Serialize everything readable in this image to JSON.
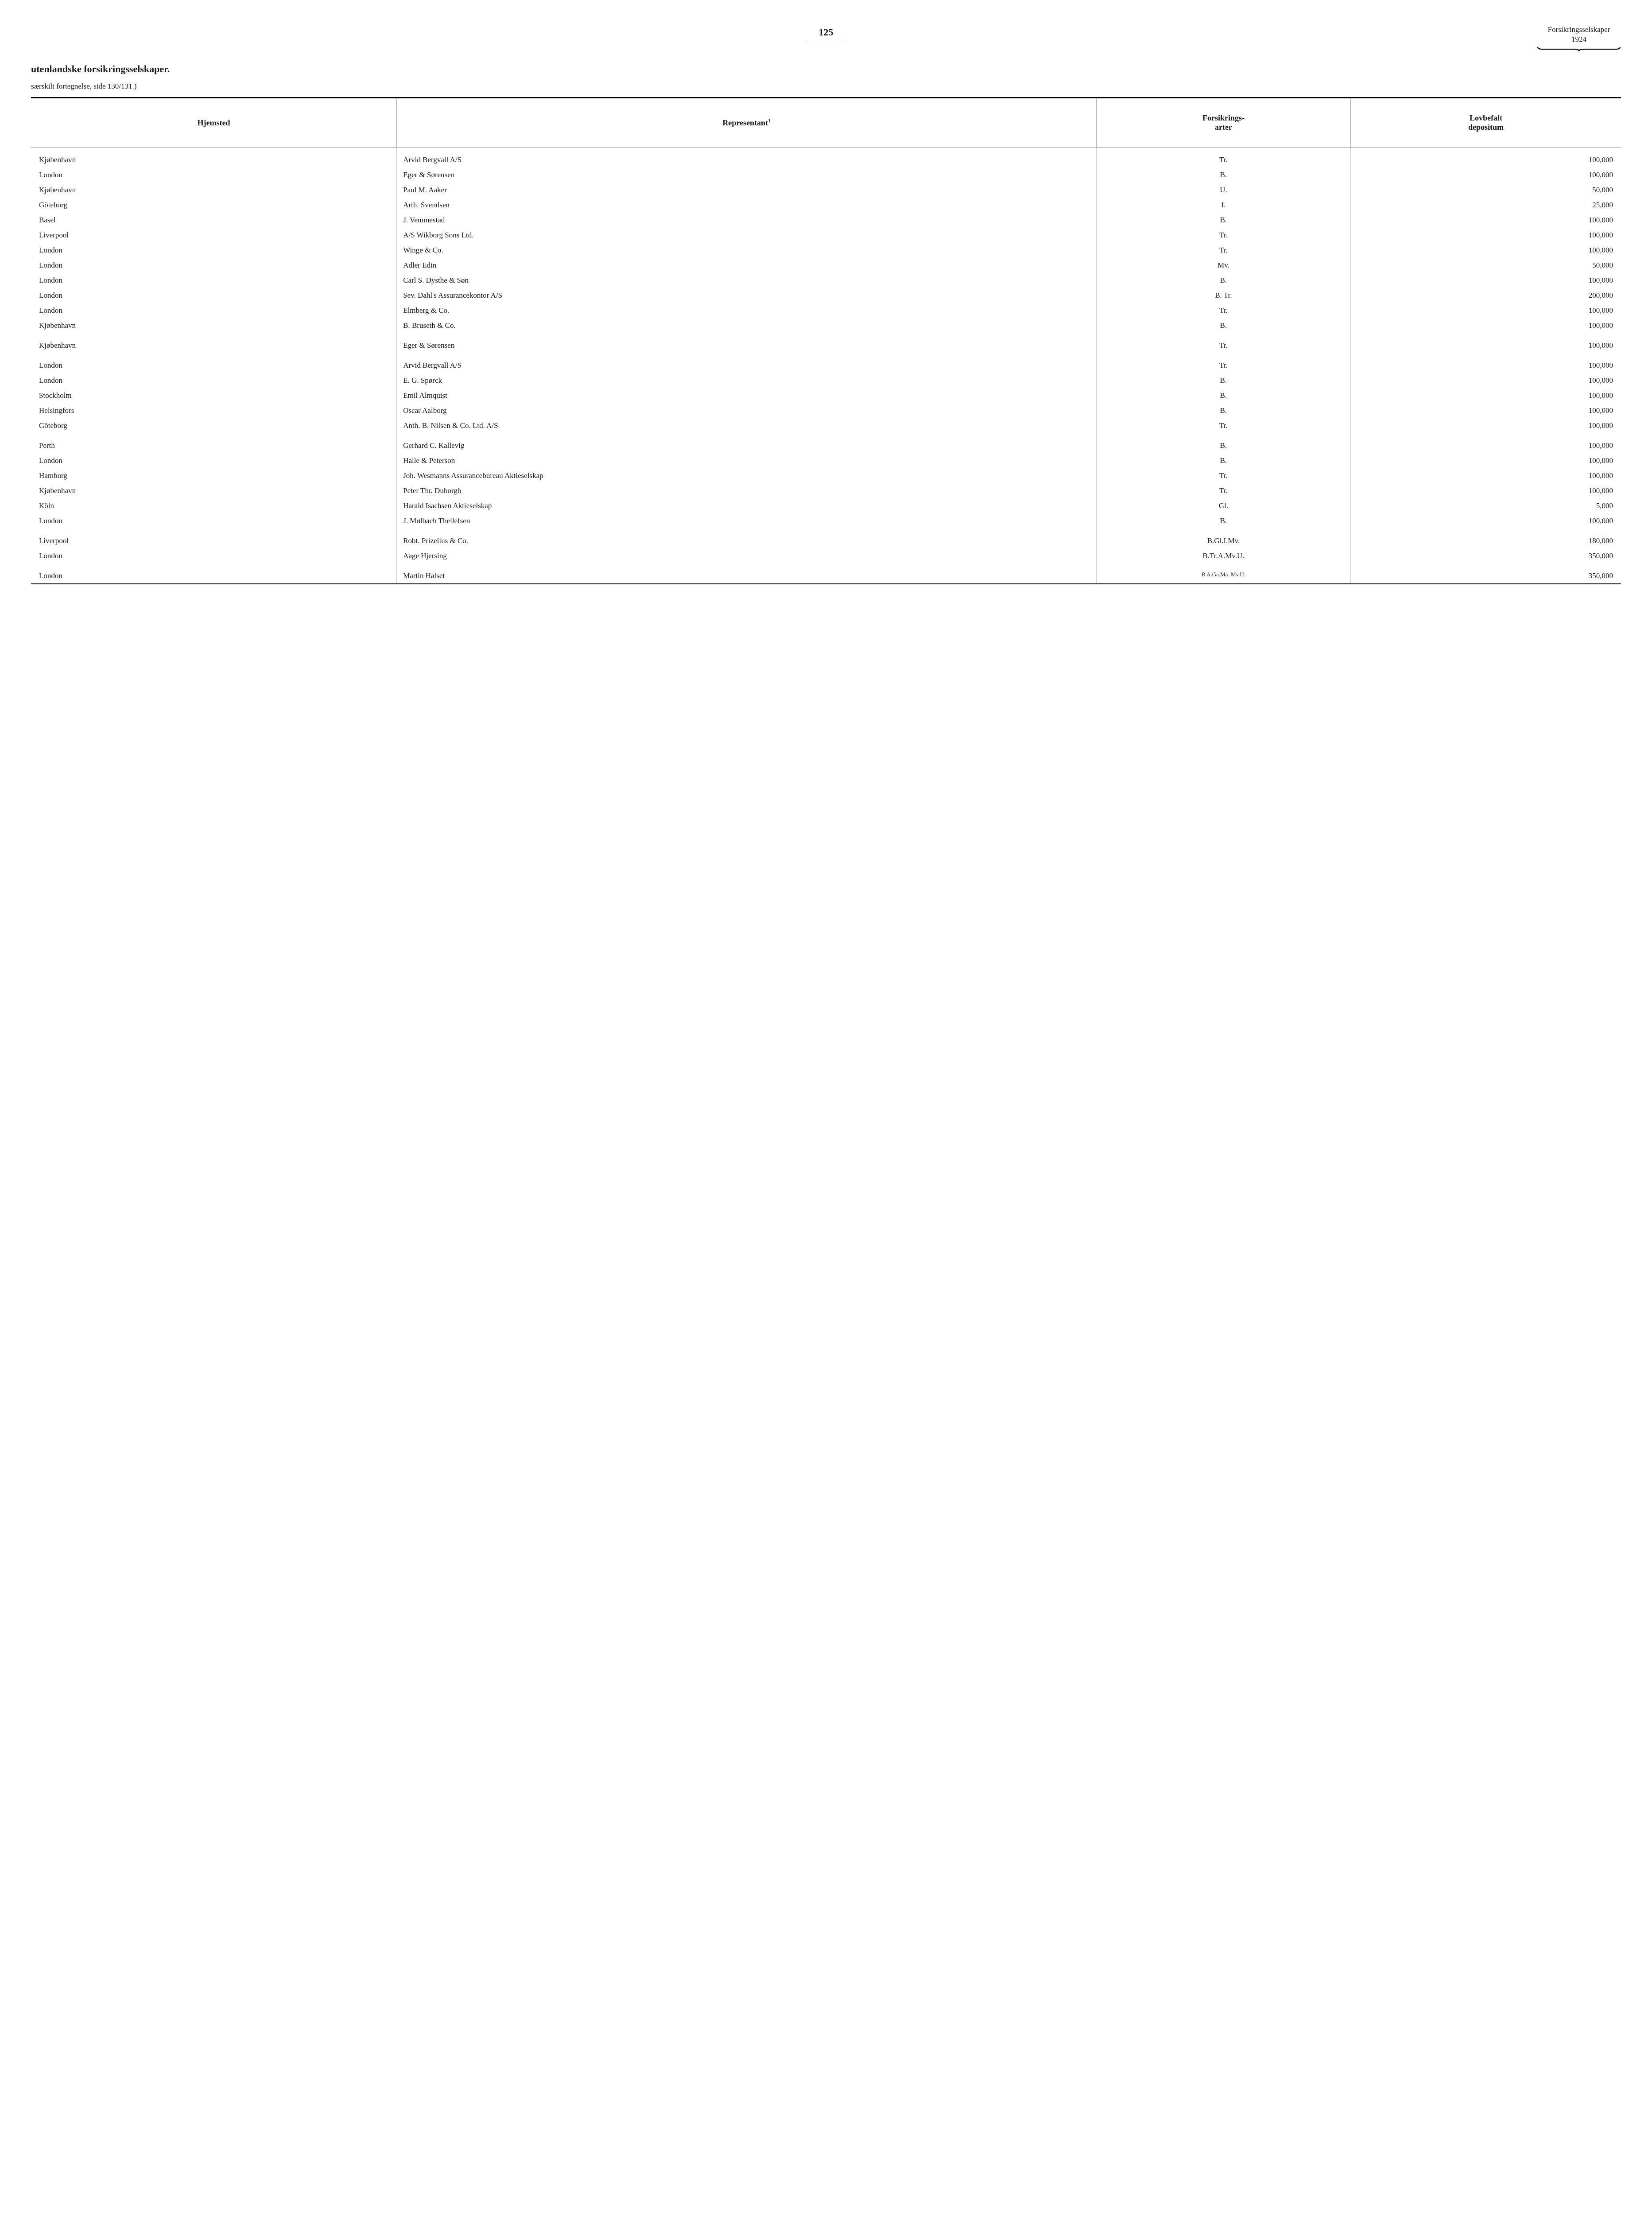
{
  "header": {
    "page_number": "125",
    "right_line1": "Forsikringsselskaper",
    "right_line2": "1924"
  },
  "title": "utenlandske forsikringsselskaper.",
  "subtitle": "særskilt fortegnelse, side 130/131.)",
  "columns": {
    "hjemsted": "Hjemsted",
    "representant": "Representant",
    "representant_note": "1",
    "forsikringsarter_l1": "Forsikrings-",
    "forsikringsarter_l2": "arter",
    "lovbefalt_l1": "Lovbefalt",
    "lovbefalt_l2": "depositum"
  },
  "rows": [
    {
      "hjemsted": "Kjøbenhavn",
      "rep": "Arvid Bergvall A/S",
      "art": "Tr.",
      "dep": "100,000",
      "gap": true
    },
    {
      "hjemsted": "London",
      "rep": "Eger & Sørensen",
      "art": "B.",
      "dep": "100,000"
    },
    {
      "hjemsted": "Kjøbenhavn",
      "rep": "Paul M. Aaker",
      "art": "U.",
      "dep": "50,000"
    },
    {
      "hjemsted": "Göteborg",
      "rep": "Arth. Svendsen",
      "art": "I.",
      "dep": "25,000"
    },
    {
      "hjemsted": "Basel",
      "rep": "J. Vemmestad",
      "art": "B.",
      "dep": "100,000"
    },
    {
      "hjemsted": "Liverpool",
      "rep": "A/S Wikborg Sons Ltd.",
      "art": "Tr.",
      "dep": "100,000"
    },
    {
      "hjemsted": "London",
      "rep": "Winge & Co.",
      "art": "Tr.",
      "dep": "100,000"
    },
    {
      "hjemsted": "London",
      "rep": "Adler Edin",
      "art": "Mv.",
      "dep": "50,000"
    },
    {
      "hjemsted": "London",
      "rep": "Carl S. Dysthe & Søn",
      "art": "B.",
      "dep": "100,000"
    },
    {
      "hjemsted": "London",
      "rep": "Sev. Dahl's Assurancekontor A/S",
      "art": "B. Tr.",
      "dep": "200,000"
    },
    {
      "hjemsted": "London",
      "rep": "Elmberg & Co.",
      "art": "Tr.",
      "dep": "100,000"
    },
    {
      "hjemsted": "Kjøbenhavn",
      "rep": "B. Bruseth & Co.",
      "art": "B.",
      "dep": "100,000"
    },
    {
      "hjemsted": "Kjøbenhavn",
      "rep": "Eger & Sørensen",
      "art": "Tr.",
      "dep": "100,000",
      "gap": true
    },
    {
      "hjemsted": "London",
      "rep": "Arvid Bergvall A/S",
      "art": "Tr.",
      "dep": "100,000",
      "gap": true
    },
    {
      "hjemsted": "London",
      "rep": "E. G. Spørck",
      "art": "B.",
      "dep": "100,000"
    },
    {
      "hjemsted": "Stockholm",
      "rep": "Emil Almquist",
      "art": "B.",
      "dep": "100,000"
    },
    {
      "hjemsted": "Helsingfors",
      "rep": "Oscar Aalborg",
      "art": "B.",
      "dep": "100,000"
    },
    {
      "hjemsted": "Göteborg",
      "rep": "Anth. B. Nilsen & Co. Ltd. A/S",
      "art": "Tr.",
      "dep": "100,000"
    },
    {
      "hjemsted": "Perth",
      "rep": "Gerhard C. Kallevig",
      "art": "B.",
      "dep": "100,000",
      "gap": true
    },
    {
      "hjemsted": "London",
      "rep": "Halle & Peterson",
      "art": "B.",
      "dep": "100,000"
    },
    {
      "hjemsted": "Hamburg",
      "rep": "Joh. Wesmanns Assurancebureau Aktieselskap",
      "art": "Tr.",
      "dep": "100,000",
      "wrap": true
    },
    {
      "hjemsted": "Kjøbenhavn",
      "rep": "Peter Thr. Duborgh",
      "art": "Tr.",
      "dep": "100,000"
    },
    {
      "hjemsted": "Köln",
      "rep": "Harald Isachsen Aktieselskap",
      "art": "Gl.",
      "dep": "5,000"
    },
    {
      "hjemsted": "London",
      "rep": "J. Mølbach Thellefsen",
      "art": "B.",
      "dep": "100,000"
    },
    {
      "hjemsted": "Liverpool",
      "rep": "Robt. Prizelius & Co.",
      "art": "B.Gl.I.Mv.",
      "dep": "180,000",
      "gap": true
    },
    {
      "hjemsted": "London",
      "rep": "Aage Hjersing",
      "art": "B.Tr.A.Mv.U.",
      "dep": "350,000"
    },
    {
      "hjemsted": "London",
      "rep": "Martin Halset",
      "art": "B A.Ga.Ma. Mv.U.",
      "dep": "350,000",
      "gap": true,
      "art_small": true
    }
  ]
}
